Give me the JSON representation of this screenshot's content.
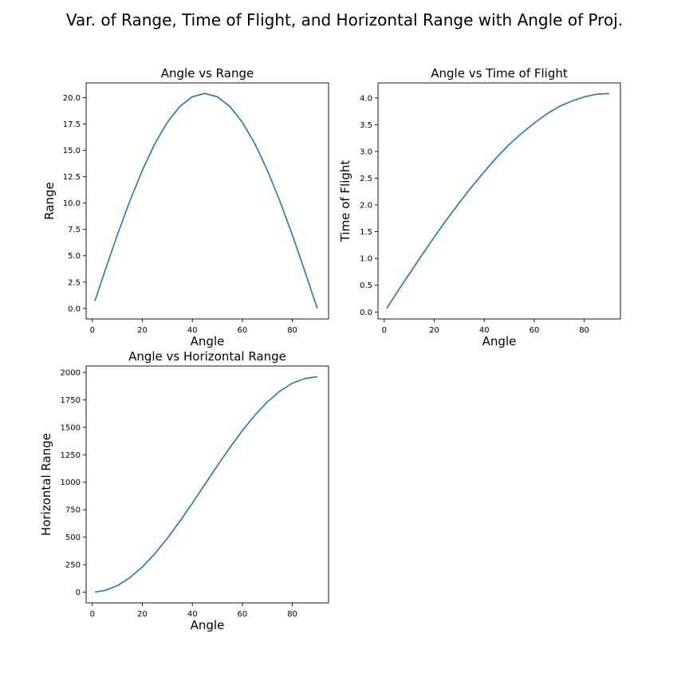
{
  "figure": {
    "title": "Var. of Range, Time of Flight, and Horizontal Range with Angle of Proj.",
    "line_color": "#1f77b4"
  },
  "chart_data": [
    {
      "type": "line",
      "title": "Angle vs Range",
      "xlabel": "Angle",
      "ylabel": "Range",
      "xlim": [
        -2.5,
        94.5
      ],
      "ylim": [
        -1.0,
        21.4
      ],
      "xticks": [
        0,
        20,
        40,
        60,
        80
      ],
      "xtick_labels": [
        "0",
        "20",
        "40",
        "60",
        "80"
      ],
      "yticks": [
        0,
        2.5,
        5,
        7.5,
        10,
        12.5,
        15,
        17.5,
        20
      ],
      "ytick_labels": [
        "0.0",
        "2.5",
        "5.0",
        "7.5",
        "10.0",
        "12.5",
        "15.0",
        "17.5",
        "20.0"
      ],
      "grid": false,
      "series": [
        {
          "x": [
            1,
            5,
            10,
            15,
            20,
            25,
            30,
            35,
            40,
            45,
            50,
            55,
            60,
            65,
            70,
            75,
            80,
            85,
            90
          ],
          "values": [
            0.71,
            3.54,
            6.98,
            10.2,
            13.12,
            15.64,
            17.67,
            19.17,
            20.09,
            20.4,
            20.09,
            19.17,
            17.67,
            15.64,
            13.12,
            10.2,
            6.98,
            3.54,
            0.0
          ]
        }
      ]
    },
    {
      "type": "line",
      "title": "Angle vs Time of Flight",
      "xlabel": "Angle",
      "ylabel": "Time of Flight",
      "xlim": [
        -2.5,
        94.5
      ],
      "ylim": [
        -0.13,
        4.28
      ],
      "xticks": [
        0,
        20,
        40,
        60,
        80
      ],
      "xtick_labels": [
        "0",
        "20",
        "40",
        "60",
        "80"
      ],
      "yticks": [
        0,
        0.5,
        1,
        1.5,
        2,
        2.5,
        3,
        3.5,
        4
      ],
      "ytick_labels": [
        "0.0",
        "0.5",
        "1.0",
        "1.5",
        "2.0",
        "2.5",
        "3.0",
        "3.5",
        "4.0"
      ],
      "grid": false,
      "series": [
        {
          "x": [
            1,
            5,
            10,
            15,
            20,
            25,
            30,
            35,
            40,
            45,
            50,
            55,
            60,
            65,
            70,
            75,
            80,
            85,
            90
          ],
          "values": [
            0.07,
            0.36,
            0.71,
            1.06,
            1.4,
            1.73,
            2.04,
            2.34,
            2.62,
            2.89,
            3.13,
            3.34,
            3.53,
            3.7,
            3.84,
            3.94,
            4.02,
            4.07,
            4.08
          ]
        }
      ]
    },
    {
      "type": "line",
      "title": "Angle vs Horizontal Range",
      "xlabel": "Angle",
      "ylabel": "Horizontal Range",
      "xlim": [
        -2.5,
        94.5
      ],
      "ylim": [
        -98,
        2058
      ],
      "xticks": [
        0,
        20,
        40,
        60,
        80
      ],
      "xtick_labels": [
        "0",
        "20",
        "40",
        "60",
        "80"
      ],
      "yticks": [
        0,
        250,
        500,
        750,
        1000,
        1250,
        1500,
        1750,
        2000
      ],
      "ytick_labels": [
        "0",
        "250",
        "500",
        "750",
        "1000",
        "1250",
        "1500",
        "1750",
        "2000"
      ],
      "grid": false,
      "series": [
        {
          "x": [
            1,
            5,
            10,
            15,
            20,
            25,
            30,
            35,
            40,
            45,
            50,
            55,
            60,
            65,
            70,
            75,
            80,
            85,
            90
          ],
          "values": [
            0.6,
            14.9,
            59.1,
            131.3,
            229.3,
            350,
            490,
            645,
            810,
            980,
            1150,
            1315,
            1470,
            1610,
            1731,
            1829,
            1901,
            1945,
            1960
          ]
        }
      ]
    }
  ]
}
